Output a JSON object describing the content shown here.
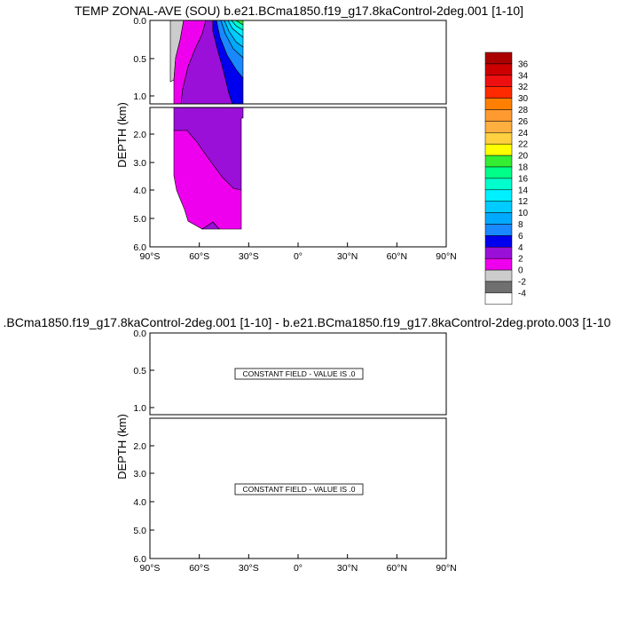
{
  "panels": [
    {
      "title": "TEMP ZONAL-AVE (SOU) b.e21.BCma1850.f19_g17.8kaControl-2deg.001 [1-10]",
      "ylabel": "DEPTH (km)",
      "xticks": [
        "90°S",
        "60°S",
        "30°S",
        "0°",
        "30°N",
        "60°N",
        "90°N"
      ],
      "yticks_upper": [
        "0.0",
        "0.5",
        "1.0"
      ],
      "yticks_lower": [
        "2.0",
        "3.0",
        "4.0",
        "5.0",
        "6.0"
      ],
      "note": ""
    },
    {
      "title": ".BCma1850.f19_g17.8kaControl-2deg.001 [1-10] - b.e21.BCma1850.f19_g17.8kaControl-2deg.proto.003 [1-10",
      "ylabel": "DEPTH (km)",
      "xticks": [
        "90°S",
        "60°S",
        "30°S",
        "0°",
        "30°N",
        "60°N",
        "90°N"
      ],
      "yticks_upper": [
        "0.0",
        "0.5",
        "1.0"
      ],
      "yticks_lower": [
        "2.0",
        "3.0",
        "4.0",
        "5.0",
        "6.0"
      ],
      "note": "CONSTANT FIELD - VALUE IS .0"
    }
  ],
  "colorbar": {
    "labels": [
      "36",
      "34",
      "32",
      "30",
      "28",
      "26",
      "24",
      "22",
      "20",
      "18",
      "16",
      "14",
      "12",
      "10",
      "8",
      "6",
      "4",
      "2",
      "0",
      "-2",
      "-4"
    ],
    "colors": [
      "#aa0000",
      "#cc0000",
      "#ee1010",
      "#ff2a00",
      "#ff8000",
      "#ff9a30",
      "#ffae40",
      "#ffd040",
      "#ffff00",
      "#33ee33",
      "#00ff88",
      "#00ffcc",
      "#00f0ff",
      "#00ccff",
      "#00aaff",
      "#1a88ff",
      "#0000ee",
      "#9a10d8",
      "#ee00ee",
      "#cccccc",
      "#707070",
      "#ffffff"
    ]
  },
  "chart_data": {
    "type": "contour",
    "variable": "TEMP ZONAL-AVE (SOU)",
    "x_range": [
      -90,
      90
    ],
    "y_range_km": [
      0,
      6
    ],
    "contour_interval": 2,
    "approx_fields": [
      {
        "level_range": [
          -2,
          0
        ],
        "lat": [
          -74,
          -62
        ],
        "depth_km": [
          0,
          0.8
        ]
      },
      {
        "level_range": [
          0,
          2
        ],
        "lat": [
          -74,
          -40
        ],
        "depth_km": [
          0,
          5.4
        ]
      },
      {
        "level_range": [
          2,
          4
        ],
        "lat": [
          -66,
          -36
        ],
        "depth_km": [
          0,
          4
        ]
      },
      {
        "level_range": [
          4,
          6
        ],
        "lat": [
          -54,
          -34
        ],
        "depth_km": [
          0,
          1.1
        ]
      },
      {
        "level_range": [
          6,
          14
        ],
        "lat": [
          -50,
          -34
        ],
        "depth_km": [
          0,
          0.4
        ]
      }
    ],
    "difference_panel": {
      "constant_value": 0
    }
  }
}
